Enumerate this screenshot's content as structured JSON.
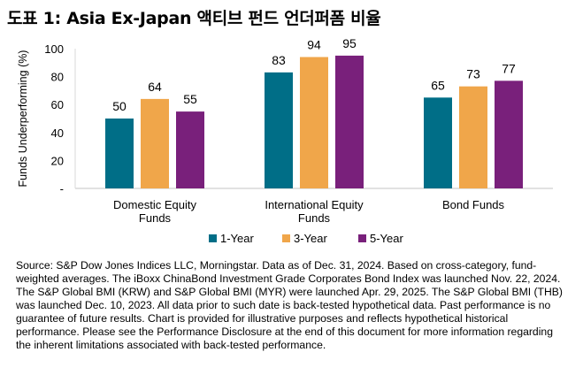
{
  "title": "도표 1: Asia Ex-Japan 액티브 펀드 언더퍼폼 비율",
  "chart_data": {
    "type": "bar",
    "title": "",
    "ylabel": "Funds Underperforming (%)",
    "xlabel": "",
    "ylim": [
      0,
      100
    ],
    "yticks": [
      0,
      20,
      40,
      60,
      80,
      100
    ],
    "ytick_labels": [
      "-",
      "20",
      "40",
      "60",
      "80",
      "100"
    ],
    "categories": [
      [
        "Domestic Equity",
        "Funds"
      ],
      [
        "International Equity",
        "Funds"
      ],
      [
        "Bond Funds"
      ]
    ],
    "series": [
      {
        "name": "1-Year",
        "color": "#006E87",
        "values": [
          50,
          83,
          65
        ]
      },
      {
        "name": "3-Year",
        "color": "#F0A64A",
        "values": [
          64,
          94,
          73
        ]
      },
      {
        "name": "5-Year",
        "color": "#79207B",
        "values": [
          55,
          95,
          77
        ]
      }
    ],
    "grid": false,
    "legend": "bottom",
    "data_labels": true
  },
  "source": "Source: S&P Dow Jones Indices LLC, Morningstar.  Data as of Dec. 31, 2024.  Based on cross-category, fund-weighted averages.  The iBoxx ChinaBond Investment Grade Corporates Bond Index was launched Nov. 22, 2024.  The S&P Global BMI (KRW) and S&P Global BMI (MYR) were launched Apr. 29, 2025.  The S&P Global BMI (THB) was launched Dec. 10, 2023.  All data prior to such date is back-tested hypothetical data.  Past performance is no guarantee of future results.  Chart is provided for illustrative purposes and reflects hypothetical historical performance.  Please see the Performance Disclosure at the end of this document for more information regarding the inherent limitations associated with back-tested performance."
}
